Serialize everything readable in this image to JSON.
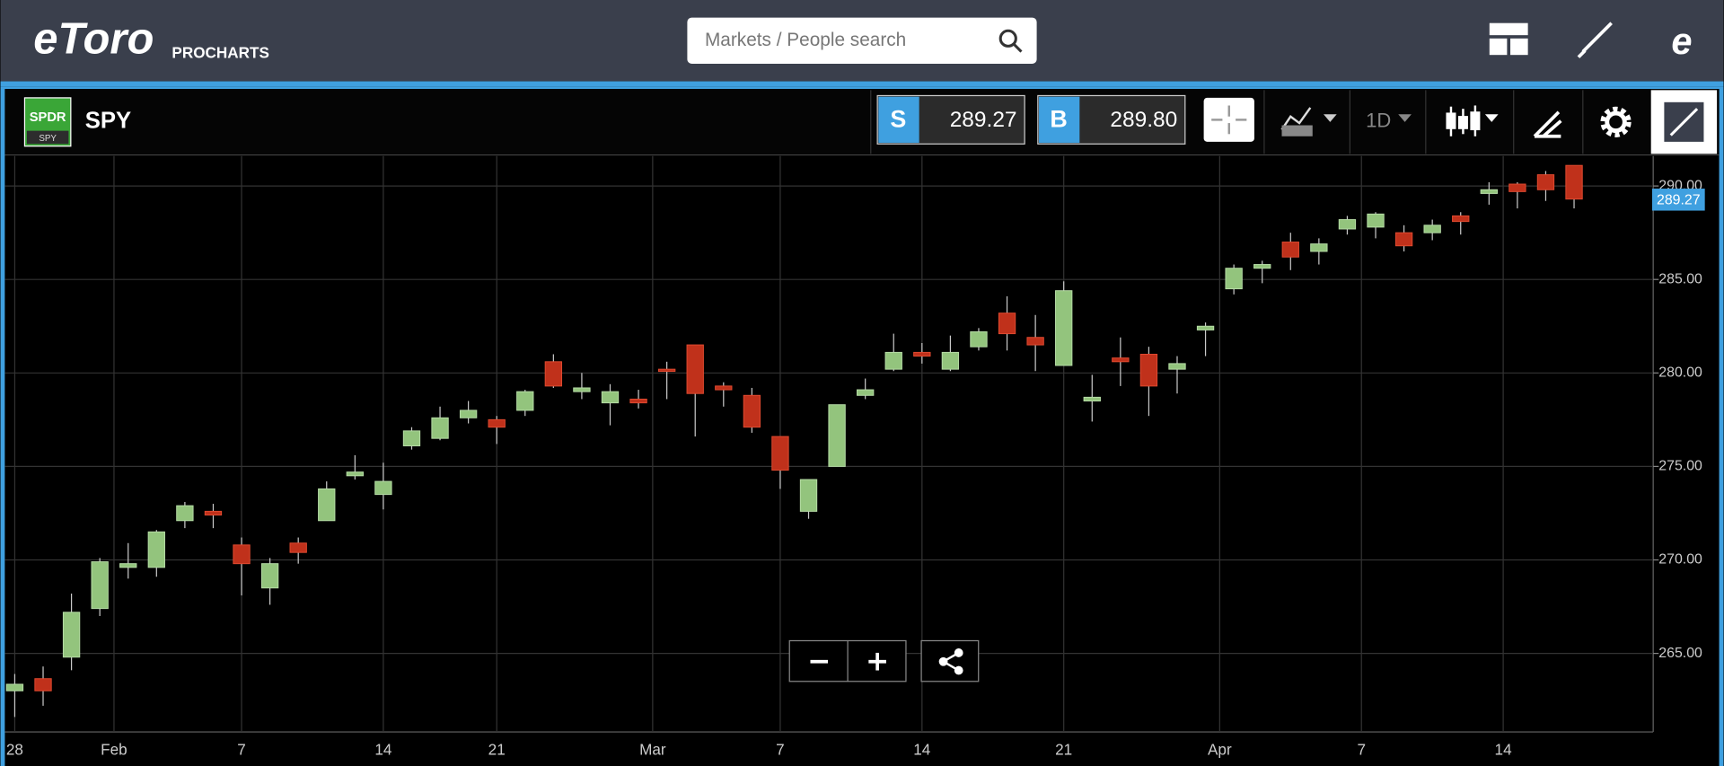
{
  "header": {
    "logo": "eToro",
    "product": "PROCHARTS",
    "search_placeholder": "Markets / People search"
  },
  "instrument": {
    "badge_top": "SPDR",
    "badge_bottom": "SPY",
    "symbol": "SPY"
  },
  "prices": {
    "sell_label": "S",
    "sell": "289.27",
    "buy_label": "B",
    "buy": "289.80"
  },
  "toolbar": {
    "interval": "1D"
  },
  "chart_data": {
    "type": "candlestick",
    "categories": [
      "28",
      null,
      null,
      null,
      "Feb",
      null,
      null,
      null,
      "7",
      null,
      null,
      null,
      null,
      "14",
      null,
      null,
      null,
      "21",
      null,
      null,
      null,
      null,
      null,
      "Mar",
      null,
      null,
      null,
      "7",
      null,
      null,
      null,
      null,
      "14",
      null,
      null,
      null,
      null,
      "21",
      null,
      null,
      null,
      null,
      null,
      "Apr",
      null,
      null,
      null,
      null,
      "7",
      null,
      null,
      null,
      null,
      "14",
      null,
      null
    ],
    "open": [
      263.0,
      263.65,
      264.8,
      267.4,
      269.6,
      269.6,
      272.1,
      272.6,
      270.8,
      268.5,
      270.9,
      272.1,
      274.5,
      273.5,
      276.1,
      276.5,
      277.6,
      277.5,
      278.0,
      280.6,
      279.0,
      278.4,
      278.6,
      280.2,
      281.5,
      279.3,
      278.8,
      276.6,
      272.6,
      275.0,
      278.8,
      280.2,
      281.1,
      280.2,
      281.4,
      283.2,
      281.9,
      280.4,
      278.5,
      280.8,
      281.0,
      280.2,
      282.3,
      284.5,
      285.6,
      287.0,
      286.5,
      287.7,
      287.8,
      287.5,
      287.5,
      288.4,
      289.6,
      290.1,
      290.6,
      291.1
    ],
    "high": [
      263.9,
      264.3,
      268.2,
      270.1,
      270.9,
      271.6,
      273.1,
      273.0,
      271.2,
      270.1,
      271.2,
      274.2,
      275.6,
      275.2,
      277.1,
      278.2,
      278.5,
      277.7,
      279.1,
      281.0,
      280.0,
      279.4,
      279.1,
      280.6,
      281.5,
      279.5,
      279.2,
      276.6,
      274.3,
      278.3,
      279.7,
      282.1,
      281.6,
      282.0,
      282.4,
      284.1,
      283.1,
      284.9,
      279.9,
      281.9,
      281.4,
      280.9,
      282.7,
      285.8,
      286.0,
      287.5,
      287.2,
      288.4,
      288.6,
      287.9,
      288.2,
      288.6,
      290.2,
      290.2,
      290.8,
      291.1
    ],
    "low": [
      261.6,
      262.2,
      264.1,
      267.0,
      269.0,
      269.1,
      271.7,
      271.7,
      268.1,
      267.6,
      269.8,
      272.1,
      274.3,
      272.7,
      275.9,
      276.4,
      277.3,
      276.2,
      277.7,
      279.2,
      278.6,
      277.2,
      278.1,
      278.6,
      276.6,
      278.2,
      276.8,
      273.8,
      272.2,
      275.0,
      278.6,
      280.1,
      280.5,
      280.1,
      281.2,
      281.2,
      280.1,
      280.4,
      277.4,
      279.3,
      277.7,
      278.9,
      280.9,
      284.2,
      284.8,
      285.5,
      285.8,
      287.4,
      287.2,
      286.5,
      287.1,
      287.4,
      289.0,
      288.8,
      289.2,
      288.8
    ],
    "close": [
      263.35,
      263.0,
      267.2,
      269.9,
      269.8,
      271.5,
      272.9,
      272.4,
      269.8,
      269.8,
      270.4,
      273.8,
      274.7,
      274.2,
      276.9,
      277.6,
      278.0,
      277.1,
      279.0,
      279.3,
      279.2,
      279.0,
      278.4,
      280.1,
      278.9,
      279.1,
      277.1,
      274.8,
      274.3,
      278.3,
      279.1,
      281.1,
      280.9,
      281.1,
      282.2,
      282.1,
      281.5,
      284.4,
      278.7,
      280.6,
      279.3,
      280.5,
      282.5,
      285.6,
      285.8,
      286.2,
      286.9,
      288.2,
      288.5,
      286.8,
      287.9,
      288.1,
      289.8,
      289.7,
      289.8,
      289.3
    ],
    "ylim": [
      260.8,
      291.6
    ],
    "yticks": [
      {
        "value": 265,
        "label": "265.00"
      },
      {
        "value": 270,
        "label": "270.00"
      },
      {
        "value": 275,
        "label": "275.00"
      },
      {
        "value": 280,
        "label": "280.00"
      },
      {
        "value": 285,
        "label": "285.00"
      },
      {
        "value": 290,
        "label": "290.00"
      }
    ],
    "last_price": {
      "value": 289.27,
      "label": "289.27"
    },
    "up_color": "#93c47d",
    "down_color": "#c0311b",
    "wick_color": "#c8c8c8",
    "grid": true
  }
}
